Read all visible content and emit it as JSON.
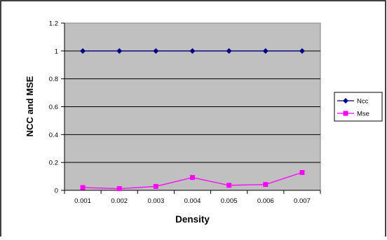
{
  "chart_data": {
    "type": "line",
    "title": "",
    "xlabel": "Density",
    "ylabel": "NCC and MSE",
    "categories": [
      "0.001",
      "0.002",
      "0.003",
      "0.004",
      "0.005",
      "0.006",
      "0.007"
    ],
    "y_ticks": [
      "0",
      "0.2",
      "0.4",
      "0.6",
      "0.8",
      "1",
      "1.2"
    ],
    "ylim": [
      0,
      1.2
    ],
    "grid": true,
    "legend_position": "right",
    "plot_background": "#c0c0c0",
    "series": [
      {
        "name": "Ncc",
        "marker": "diamond",
        "color": "#000080",
        "values": [
          1,
          1,
          1,
          1,
          1,
          1,
          1
        ]
      },
      {
        "name": "Mse",
        "marker": "square",
        "color": "#ff00ff",
        "values": [
          0.02,
          0.012,
          0.028,
          0.092,
          0.036,
          0.042,
          0.128
        ]
      }
    ]
  }
}
